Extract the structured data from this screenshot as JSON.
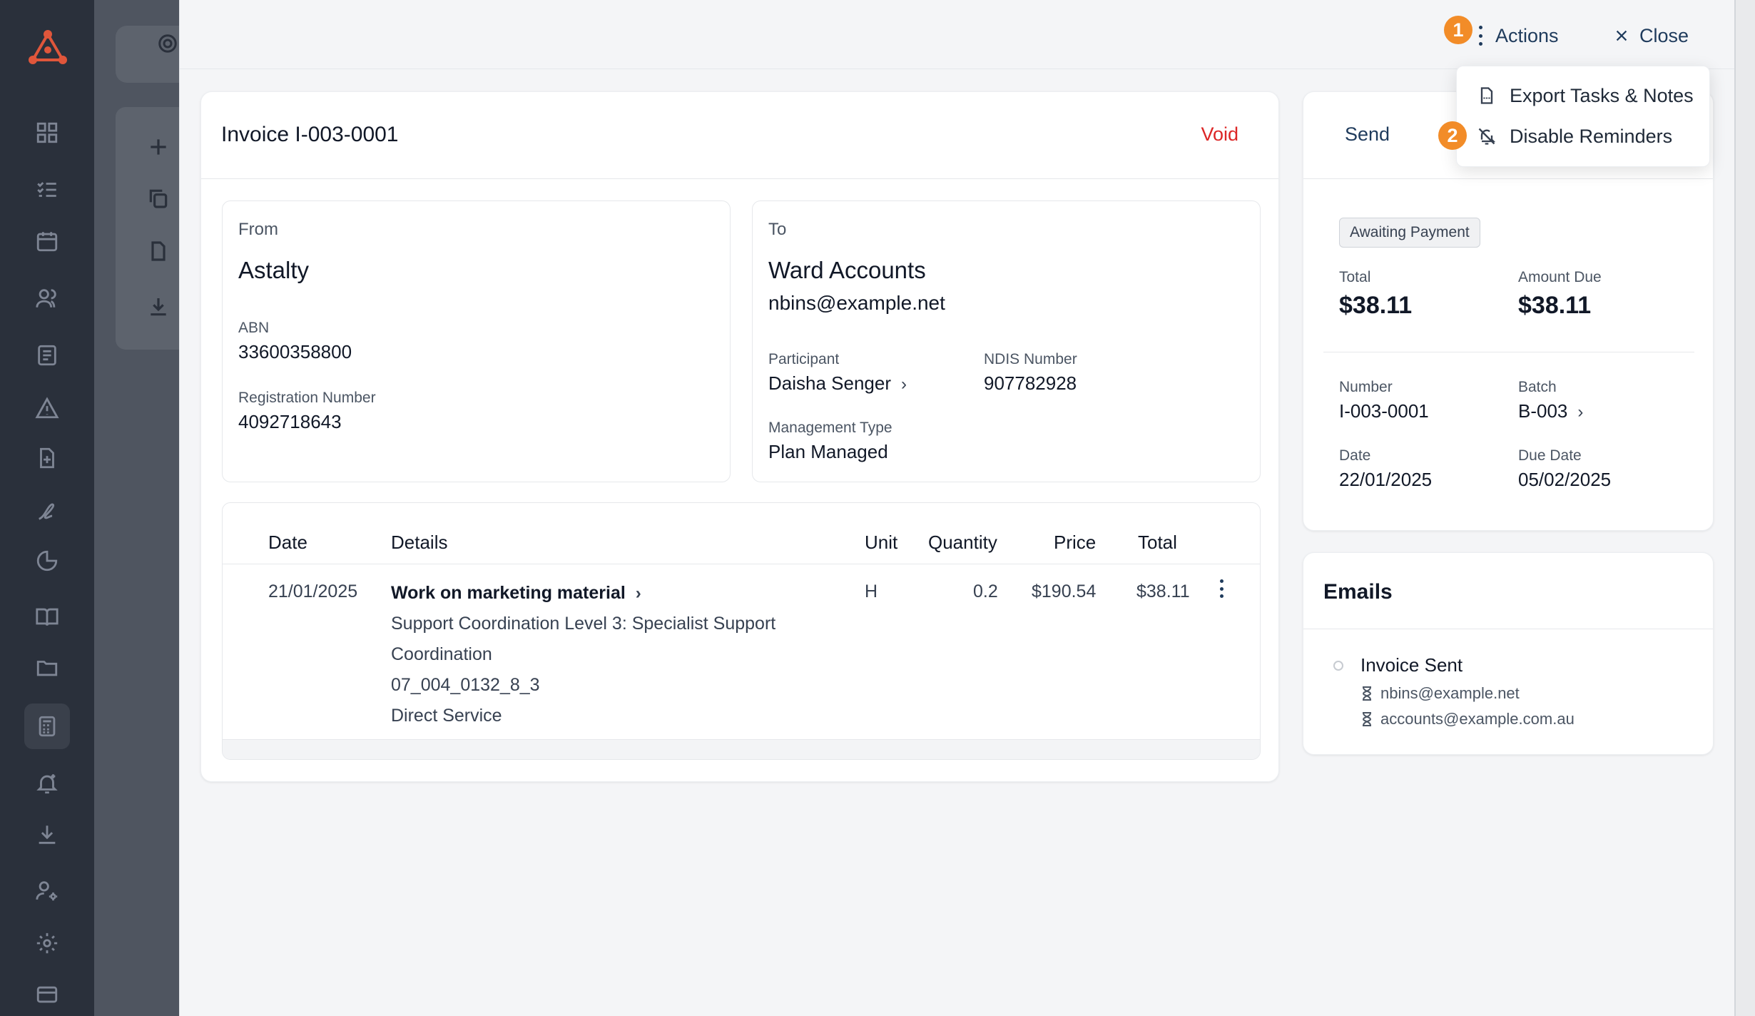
{
  "header": {
    "step1": "1",
    "step2": "2",
    "actions_label": "Actions",
    "close_label": "Close"
  },
  "dropdown": {
    "items": [
      {
        "label": "Export Tasks & Notes",
        "icon": "pdf-file-icon"
      },
      {
        "label": "Disable Reminders",
        "icon": "bell-off-icon"
      }
    ]
  },
  "invoice": {
    "title": "Invoice I-003-0001",
    "void_label": "Void",
    "from": {
      "label": "From",
      "name": "Astalty",
      "abn_label": "ABN",
      "abn": "33600358800",
      "reg_label": "Registration Number",
      "reg": "4092718643"
    },
    "to": {
      "label": "To",
      "name": "Ward Accounts",
      "email": "nbins@example.net",
      "participant_label": "Participant",
      "participant": "Daisha Senger",
      "ndis_label": "NDIS Number",
      "ndis": "907782928",
      "mgmt_label": "Management Type",
      "mgmt": "Plan Managed"
    },
    "table": {
      "headers": {
        "date": "Date",
        "details": "Details",
        "unit": "Unit",
        "quantity": "Quantity",
        "price": "Price",
        "total": "Total"
      },
      "rows": [
        {
          "date": "21/01/2025",
          "title": "Work on marketing material",
          "desc1": "Support Coordination Level 3: Specialist Support",
          "desc2": "Coordination",
          "code": "07_004_0132_8_3",
          "service": "Direct Service",
          "unit": "H",
          "quantity": "0.2",
          "price": "$190.54",
          "total": "$38.11"
        }
      ]
    }
  },
  "summary": {
    "send_label": "Send",
    "status": "Awaiting Payment",
    "total_label": "Total",
    "total": "$38.11",
    "due_label": "Amount Due",
    "due": "$38.11",
    "number_label": "Number",
    "number": "I-003-0001",
    "batch_label": "Batch",
    "batch": "B-003",
    "date_label": "Date",
    "date": "22/01/2025",
    "due_date_label": "Due Date",
    "due_date": "05/02/2025"
  },
  "emails": {
    "title": "Emails",
    "event": "Invoice Sent",
    "recipients": [
      "nbins@example.net",
      "accounts@example.com.au"
    ]
  },
  "colors": {
    "accent_orange": "#f28c28",
    "void_red": "#dc2626",
    "navy_text": "#1f3b5c",
    "rail_bg": "#2a303b"
  }
}
